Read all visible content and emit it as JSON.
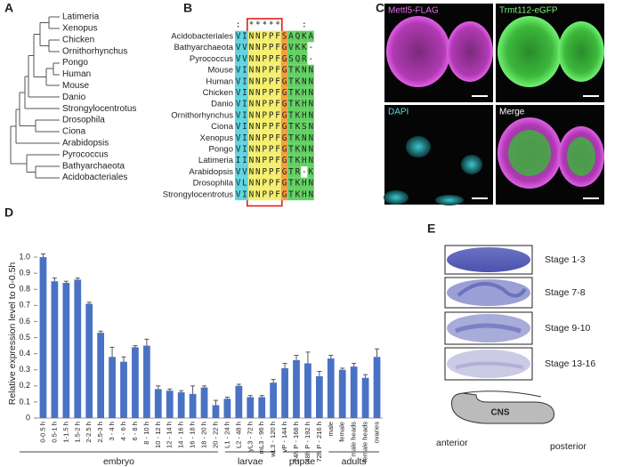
{
  "panel_labels": [
    "A",
    "B",
    "C",
    "D",
    "E"
  ],
  "tree": {
    "leaves": [
      "Latimeria",
      "Xenopus",
      "Chicken",
      "Ornithorhynchus",
      "Pongo",
      "Human",
      "Mouse",
      "Danio",
      "Strongylocentrotus",
      "Drosophila",
      "Ciona",
      "Arabidopsis",
      "Pyrococcus",
      "Bathyarchaeota",
      "Acidobacteriales"
    ]
  },
  "alignment": {
    "conservation": ": *****   :",
    "rows": [
      {
        "name": "Acidobacteriales",
        "sequence": "VINNPPFSAQKA"
      },
      {
        "name": "Bathyarchaeota",
        "sequence": "VVNNPPFGVKK-"
      },
      {
        "name": "Pyrococcus",
        "sequence": "VVNNPPFGSQR-"
      },
      {
        "name": "Mouse",
        "sequence": "VINNPPFGTKNN"
      },
      {
        "name": "Human",
        "sequence": "VINNPPFGTKNN"
      },
      {
        "name": "Chicken",
        "sequence": "VINNPPFGTKHN"
      },
      {
        "name": "Danio",
        "sequence": "VINNPPFGTKHN"
      },
      {
        "name": "Ornithorhynchus",
        "sequence": "VINNPPFGTKHN"
      },
      {
        "name": "Ciona",
        "sequence": "VINNPPFGTKSN"
      },
      {
        "name": "Xenopus",
        "sequence": "VINNPPFGTKNN"
      },
      {
        "name": "Pongo",
        "sequence": "VINNPPFGTKNN"
      },
      {
        "name": "Latimeria",
        "sequence": "IINNPPFGTKHN"
      },
      {
        "name": "Arabidopsis",
        "sequence": "VVNNPPFGTR-K"
      },
      {
        "name": "Drosophila",
        "sequence": "VLNNPPFGTKHN"
      },
      {
        "name": "Strongylocentrotus",
        "sequence": "VINNPPFGTKHN"
      }
    ]
  },
  "images": {
    "labels": [
      "Mettl5-FLAG",
      "Trmt112-eGFP",
      "DAPI",
      "Merge"
    ]
  },
  "chart_data": {
    "type": "bar",
    "y_label": "Relative expression level to 0-0.5h",
    "categories": [
      "0-0.5 h",
      "0.5-1 h",
      "1-1.5 h",
      "1.5-2 h",
      "2-2.5 h",
      "2.5-3 h",
      "3 - 4 h",
      "4 - 6 h",
      "6 - 8 h",
      "8 - 10 h",
      "10 - 12 h",
      "12 - 14 h",
      "14 - 16 h",
      "16 - 18 h",
      "18 - 20 h",
      "20 - 22 h",
      "L1 - 24 h",
      "L2 - 48 h",
      "yL3 - 72 h",
      "mL3 - 96 h",
      "wL3 - 120 h",
      "vP - 144 h",
      "24h P - 168 h",
      "48h P - 192 h",
      "72h P - 216 h",
      "male",
      "female",
      "male heads",
      "female heads",
      "ovaries"
    ],
    "values": [
      1.0,
      0.85,
      0.84,
      0.86,
      0.71,
      0.53,
      0.38,
      0.35,
      0.44,
      0.45,
      0.18,
      0.17,
      0.16,
      0.15,
      0.19,
      0.08,
      0.12,
      0.2,
      0.13,
      0.13,
      0.22,
      0.31,
      0.36,
      0.34,
      0.26,
      0.37,
      0.3,
      0.32,
      0.25,
      0.38
    ],
    "errors": [
      0.02,
      0.02,
      0.01,
      0.01,
      0.01,
      0.01,
      0.06,
      0.03,
      0.01,
      0.04,
      0.02,
      0.01,
      0.01,
      0.05,
      0.01,
      0.03,
      0.01,
      0.01,
      0.01,
      0.01,
      0.02,
      0.03,
      0.03,
      0.07,
      0.03,
      0.02,
      0.01,
      0.02,
      0.02,
      0.05
    ],
    "groups": [
      {
        "name": "embryo",
        "count": 16
      },
      {
        "name": "larvae",
        "count": 5
      },
      {
        "name": "pupae",
        "count": 4
      },
      {
        "name": "adults",
        "count": 5
      }
    ],
    "color": "#4a72c4",
    "ylim": [
      0,
      1.05
    ],
    "yticks": [
      0,
      0.1,
      0.2,
      0.3,
      0.4,
      0.5,
      0.6,
      0.7,
      0.8,
      0.9,
      {
        "value": 1,
        "label": "1.0"
      }
    ]
  },
  "in_situ": {
    "stages": [
      "Stage 1-3",
      "Stage 7-8",
      "Stage 9-10",
      "Stage 13-16"
    ],
    "diagram": {
      "label": "CNS",
      "anterior": "anterior",
      "posterior": "posterior"
    }
  }
}
